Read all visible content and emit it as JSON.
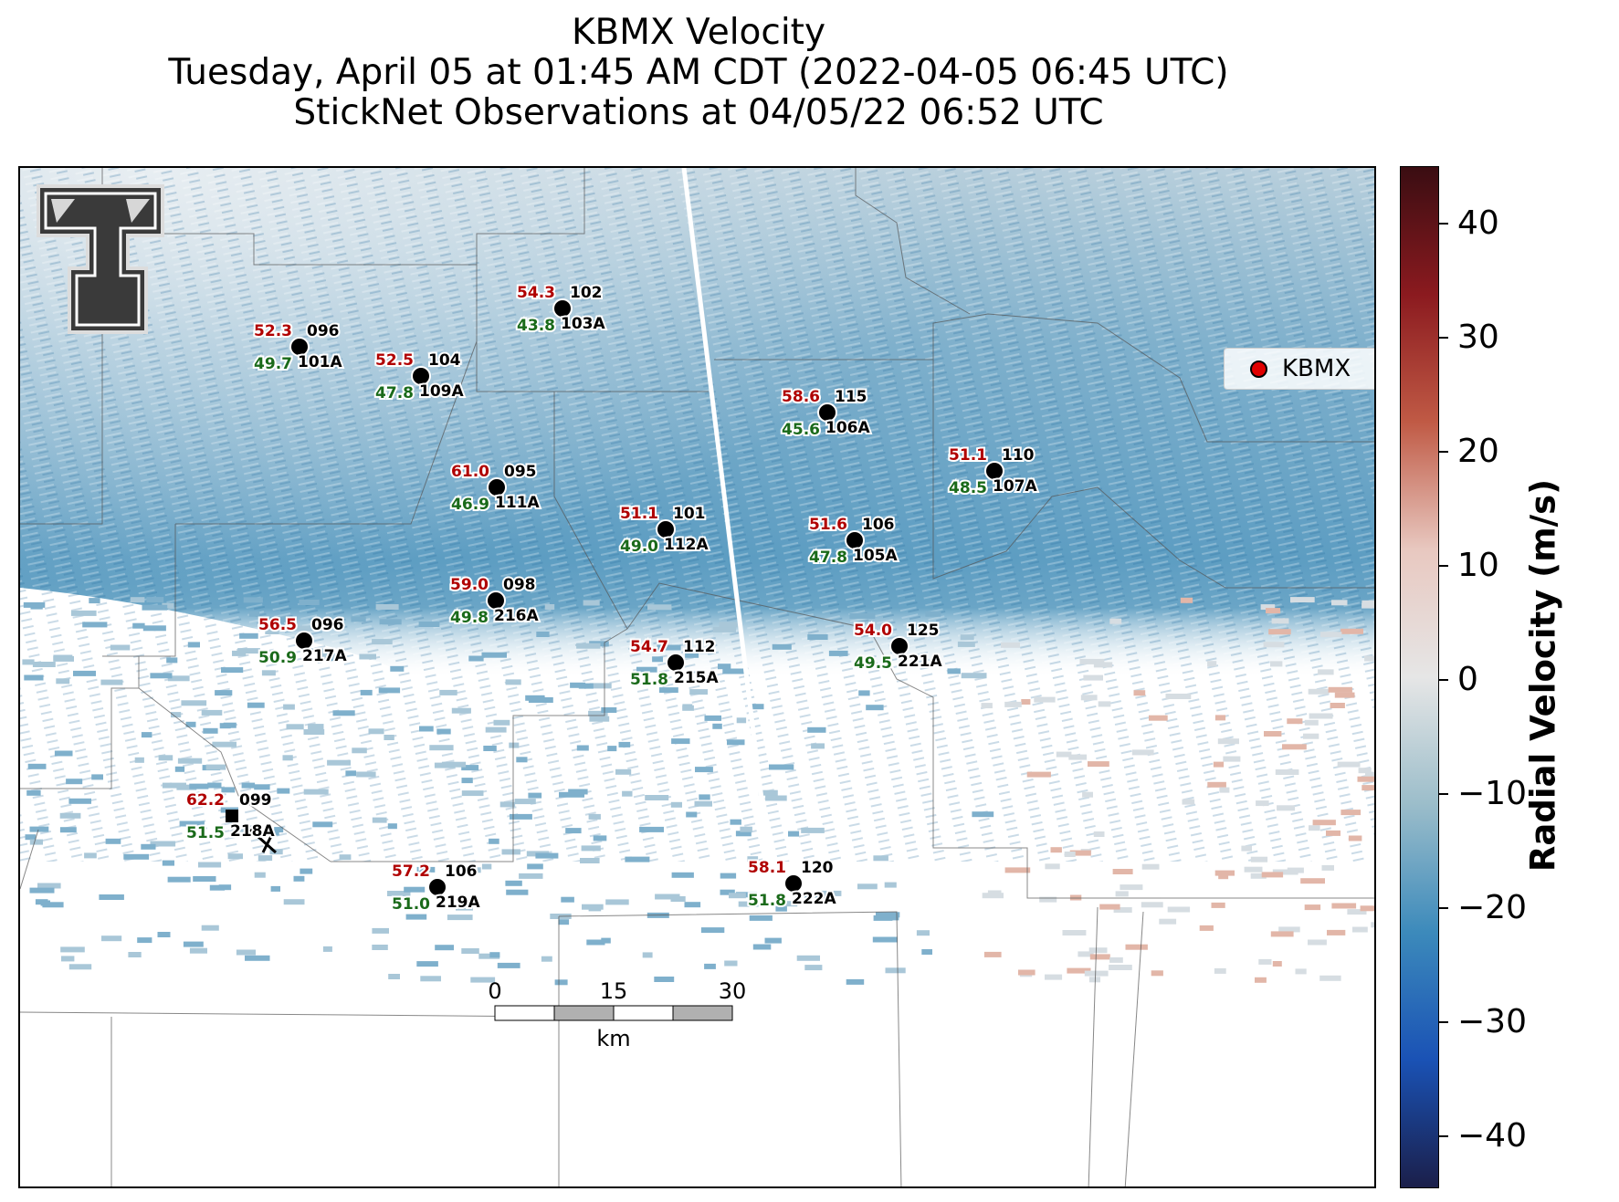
{
  "title": {
    "line1": "KBMX Velocity",
    "line2": "Tuesday, April 05 at 01:45 AM CDT (2022-04-05 06:45 UTC)",
    "line3": "StickNet Observations at 04/05/22 06:52 UTC"
  },
  "legend": {
    "label": "KBMX",
    "marker_color": "#e00000"
  },
  "colorbar": {
    "label": "Radial Velocity (m/s)",
    "ticks": [
      "40",
      "30",
      "20",
      "10",
      "0",
      "−10",
      "−20",
      "−30",
      "−40"
    ],
    "colors": [
      "#3a0d12",
      "#8b1a1f",
      "#c05a45",
      "#e8c8c0",
      "#e6e6e6",
      "#9bbdca",
      "#3c8abb",
      "#1a52b5",
      "#1b1f4a"
    ]
  },
  "scalebar": {
    "labels": [
      "0",
      "15",
      "30"
    ],
    "unit": "km"
  },
  "logo": {
    "name": "texas-tech-logo"
  },
  "stations": [
    {
      "id": "101A",
      "gust": "52.3",
      "dir": "096",
      "wind": "49.7"
    },
    {
      "id": "103A",
      "gust": "54.3",
      "dir": "102",
      "wind": "43.8"
    },
    {
      "id": "109A",
      "gust": "52.5",
      "dir": "104",
      "wind": "47.8"
    },
    {
      "id": "106A",
      "gust": "58.6",
      "dir": "115",
      "wind": "45.6"
    },
    {
      "id": "107A",
      "gust": "51.1",
      "dir": "110",
      "wind": "48.5"
    },
    {
      "id": "111A",
      "gust": "61.0",
      "dir": "095",
      "wind": "46.9"
    },
    {
      "id": "112A",
      "gust": "51.1",
      "dir": "101",
      "wind": "49.0"
    },
    {
      "id": "105A",
      "gust": "51.6",
      "dir": "106",
      "wind": "47.8"
    },
    {
      "id": "216A",
      "gust": "59.0",
      "dir": "098",
      "wind": "49.8"
    },
    {
      "id": "217A",
      "gust": "56.5",
      "dir": "096",
      "wind": "50.9"
    },
    {
      "id": "215A",
      "gust": "54.7",
      "dir": "112",
      "wind": "51.8"
    },
    {
      "id": "221A",
      "gust": "54.0",
      "dir": "125",
      "wind": "49.5"
    },
    {
      "id": "218A",
      "gust": "62.2",
      "dir": "099",
      "wind": "51.5"
    },
    {
      "id": "219A",
      "gust": "57.2",
      "dir": "106",
      "wind": "51.0"
    },
    {
      "id": "222A",
      "gust": "58.1",
      "dir": "120",
      "wind": "51.8"
    }
  ]
}
